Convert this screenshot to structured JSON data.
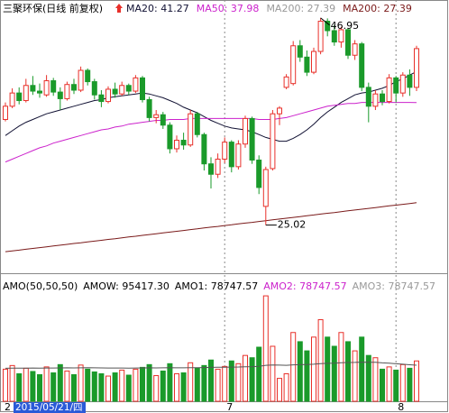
{
  "chart_data": {
    "type": "candlestick",
    "title": "三聚环保(日线 前复权)",
    "up_color": "#e8302a",
    "down_color": "#1a9a2a",
    "ylim": [
      20.4,
      47.7
    ],
    "categories": [
      "2",
      null,
      null,
      null,
      null,
      null,
      null,
      null,
      null,
      null,
      null,
      null,
      null,
      null,
      null,
      null,
      null,
      null,
      null,
      null,
      null,
      null,
      null,
      null,
      null,
      null,
      null,
      null,
      null,
      null,
      null,
      null,
      "7",
      null,
      null,
      null,
      null,
      null,
      null,
      null,
      null,
      null,
      null,
      null,
      null,
      null,
      null,
      null,
      null,
      null,
      null,
      null,
      null,
      null,
      null,
      null,
      null,
      "8",
      null,
      null,
      null
    ],
    "cursor_label": "2015/05/21/四",
    "candles": [
      {
        "open": 36.2,
        "close": 37.6,
        "high": 38.0,
        "low": 36.0
      },
      {
        "open": 37.6,
        "close": 39.0,
        "high": 39.5,
        "low": 37.4
      },
      {
        "open": 39.0,
        "close": 38.2,
        "high": 39.6,
        "low": 37.8
      },
      {
        "open": 38.2,
        "close": 39.8,
        "high": 40.5,
        "low": 38.0
      },
      {
        "open": 39.8,
        "close": 39.2,
        "high": 40.8,
        "low": 38.8
      },
      {
        "open": 39.2,
        "close": 39.0,
        "high": 40.0,
        "low": 38.5
      },
      {
        "open": 38.8,
        "close": 40.3,
        "high": 40.9,
        "low": 38.6
      },
      {
        "open": 40.3,
        "close": 39.1,
        "high": 40.6,
        "low": 38.7
      },
      {
        "open": 39.1,
        "close": 38.4,
        "high": 39.6,
        "low": 37.2
      },
      {
        "open": 38.4,
        "close": 39.9,
        "high": 40.2,
        "low": 38.2
      },
      {
        "open": 39.9,
        "close": 39.3,
        "high": 40.5,
        "low": 38.9
      },
      {
        "open": 39.3,
        "close": 41.4,
        "high": 41.8,
        "low": 39.1
      },
      {
        "open": 41.4,
        "close": 40.2,
        "high": 41.6,
        "low": 39.8
      },
      {
        "open": 40.2,
        "close": 38.8,
        "high": 40.5,
        "low": 38.3
      },
      {
        "open": 38.8,
        "close": 38.1,
        "high": 39.3,
        "low": 37.5
      },
      {
        "open": 38.1,
        "close": 39.4,
        "high": 39.7,
        "low": 37.9
      },
      {
        "open": 39.4,
        "close": 38.9,
        "high": 40.1,
        "low": 38.5
      },
      {
        "open": 38.9,
        "close": 39.8,
        "high": 40.2,
        "low": 38.7
      },
      {
        "open": 39.8,
        "close": 39.2,
        "high": 40.0,
        "low": 38.8
      },
      {
        "open": 39.2,
        "close": 40.6,
        "high": 40.9,
        "low": 39.0
      },
      {
        "open": 40.6,
        "close": 38.3,
        "high": 40.8,
        "low": 38.0
      },
      {
        "open": 38.3,
        "close": 36.4,
        "high": 38.6,
        "low": 36.0
      },
      {
        "open": 36.4,
        "close": 36.7,
        "high": 37.2,
        "low": 35.8
      },
      {
        "open": 36.7,
        "close": 35.6,
        "high": 37.0,
        "low": 35.2
      },
      {
        "open": 35.6,
        "close": 33.1,
        "high": 35.9,
        "low": 32.6
      },
      {
        "open": 33.1,
        "close": 34.0,
        "high": 34.5,
        "low": 32.7
      },
      {
        "open": 34.0,
        "close": 33.5,
        "high": 34.8,
        "low": 33.0
      },
      {
        "open": 33.5,
        "close": 36.8,
        "high": 37.2,
        "low": 33.3
      },
      {
        "open": 36.8,
        "close": 34.6,
        "high": 37.0,
        "low": 34.3
      },
      {
        "open": 34.6,
        "close": 31.5,
        "high": 34.8,
        "low": 30.8
      },
      {
        "open": 31.5,
        "close": 30.4,
        "high": 32.2,
        "low": 28.9
      },
      {
        "open": 30.4,
        "close": 32.0,
        "high": 32.6,
        "low": 30.0
      },
      {
        "open": 32.0,
        "close": 33.8,
        "high": 34.3,
        "low": 31.6
      },
      {
        "open": 33.8,
        "close": 31.2,
        "high": 34.0,
        "low": 30.6
      },
      {
        "open": 31.2,
        "close": 33.6,
        "high": 34.0,
        "low": 30.9
      },
      {
        "open": 33.6,
        "close": 36.3,
        "high": 36.6,
        "low": 33.2
      },
      {
        "open": 36.3,
        "close": 31.9,
        "high": 36.5,
        "low": 31.5
      },
      {
        "open": 31.9,
        "close": 29.0,
        "high": 32.4,
        "low": 28.3
      },
      {
        "open": 27.0,
        "close": 30.9,
        "high": 31.2,
        "low": 25.02
      },
      {
        "open": 31.0,
        "close": 36.8,
        "high": 37.2,
        "low": 30.8
      },
      {
        "open": 36.8,
        "close": 37.4,
        "high": 37.6,
        "low": 35.6
      },
      {
        "open": 39.6,
        "close": 40.7,
        "high": 41.0,
        "low": 39.4
      },
      {
        "open": 40.0,
        "close": 44.0,
        "high": 44.5,
        "low": 39.8
      },
      {
        "open": 44.0,
        "close": 42.8,
        "high": 44.6,
        "low": 42.3
      },
      {
        "open": 42.8,
        "close": 41.2,
        "high": 43.5,
        "low": 40.8
      },
      {
        "open": 41.2,
        "close": 43.4,
        "high": 43.8,
        "low": 41.0
      },
      {
        "open": 43.4,
        "close": 46.6,
        "high": 46.95,
        "low": 43.1
      },
      {
        "open": 46.6,
        "close": 45.6,
        "high": 46.9,
        "low": 45.0
      },
      {
        "open": 45.6,
        "close": 44.4,
        "high": 46.2,
        "low": 44.0
      },
      {
        "open": 44.4,
        "close": 45.7,
        "high": 46.0,
        "low": 43.8
      },
      {
        "open": 45.7,
        "close": 43.0,
        "high": 45.9,
        "low": 42.6
      },
      {
        "open": 43.0,
        "close": 44.2,
        "high": 44.6,
        "low": 42.5
      },
      {
        "open": 44.2,
        "close": 39.6,
        "high": 44.4,
        "low": 39.2
      },
      {
        "open": 39.6,
        "close": 37.6,
        "high": 40.1,
        "low": 35.9
      },
      {
        "open": 37.6,
        "close": 38.9,
        "high": 39.3,
        "low": 37.2
      },
      {
        "open": 38.9,
        "close": 38.1,
        "high": 39.3,
        "low": 37.7
      },
      {
        "open": 38.1,
        "close": 40.6,
        "high": 41.0,
        "low": 37.9
      },
      {
        "open": 40.6,
        "close": 39.0,
        "high": 40.8,
        "low": 38.0
      },
      {
        "open": 39.0,
        "close": 40.9,
        "high": 41.2,
        "low": 38.6
      },
      {
        "open": 40.9,
        "close": 39.6,
        "high": 41.5,
        "low": 38.7
      },
      {
        "open": 39.6,
        "close": 43.7,
        "high": 44.0,
        "low": 39.2
      }
    ],
    "series": [
      {
        "name": "MA20: 41.27",
        "color": "#111133",
        "values": [
          34.5,
          35.0,
          35.5,
          35.9,
          36.2,
          36.5,
          36.8,
          37.0,
          37.2,
          37.4,
          37.6,
          37.8,
          38.0,
          38.2,
          38.3,
          38.5,
          38.6,
          38.7,
          38.8,
          38.9,
          39.0,
          38.9,
          38.7,
          38.5,
          38.2,
          37.9,
          37.5,
          37.2,
          36.9,
          36.5,
          36.1,
          35.8,
          35.5,
          35.3,
          35.2,
          35.1,
          34.9,
          34.6,
          34.3,
          34.1,
          33.9,
          33.9,
          34.2,
          34.6,
          35.1,
          35.7,
          36.4,
          37.0,
          37.5,
          38.0,
          38.4,
          38.8,
          39.0,
          39.1,
          39.3,
          39.5,
          39.8,
          40.2,
          40.5,
          40.9,
          41.27
        ]
      },
      {
        "name": "MA50: 37.98",
        "color": "#cc22cc",
        "values": [
          31.7,
          32.0,
          32.3,
          32.6,
          32.9,
          33.2,
          33.4,
          33.7,
          33.9,
          34.1,
          34.3,
          34.5,
          34.7,
          34.9,
          35.1,
          35.2,
          35.4,
          35.5,
          35.7,
          35.8,
          35.9,
          36.0,
          36.1,
          36.1,
          36.2,
          36.2,
          36.2,
          36.3,
          36.3,
          36.3,
          36.3,
          36.3,
          36.3,
          36.3,
          36.3,
          36.3,
          36.3,
          36.2,
          36.2,
          36.2,
          36.3,
          36.4,
          36.6,
          36.8,
          37.0,
          37.2,
          37.4,
          37.6,
          37.7,
          37.8,
          37.9,
          37.9,
          38.0,
          38.0,
          38.0,
          38.0,
          38.0,
          38.0,
          38.0,
          38.0,
          37.98
        ]
      },
      {
        "name": "MA200: 27.39",
        "color": "#7a1a1a",
        "values": [
          22.2,
          22.29,
          22.37,
          22.46,
          22.55,
          22.63,
          22.72,
          22.81,
          22.89,
          22.98,
          23.07,
          23.15,
          23.24,
          23.32,
          23.41,
          23.5,
          23.58,
          23.67,
          23.76,
          23.84,
          23.93,
          24.02,
          24.1,
          24.19,
          24.28,
          24.36,
          24.45,
          24.54,
          24.62,
          24.71,
          24.8,
          24.88,
          24.97,
          25.05,
          25.14,
          25.23,
          25.31,
          25.4,
          25.49,
          25.57,
          25.66,
          25.75,
          25.83,
          25.92,
          26.01,
          26.09,
          26.18,
          26.27,
          26.35,
          26.44,
          26.53,
          26.61,
          26.7,
          26.79,
          26.87,
          26.96,
          27.05,
          27.13,
          27.22,
          27.3,
          27.39
        ]
      }
    ],
    "legend_extra": {
      "name": "MA200: 27.39",
      "color": "#999999"
    },
    "volume": {
      "vlim": [
        0,
        240000
      ],
      "values": [
        70000,
        78000,
        60000,
        72000,
        65000,
        58000,
        75000,
        62000,
        80000,
        66000,
        58000,
        79000,
        70000,
        64000,
        60000,
        55000,
        62000,
        68000,
        57000,
        70000,
        74000,
        80000,
        56000,
        66000,
        82000,
        60000,
        62000,
        84000,
        72000,
        78000,
        90000,
        70000,
        76000,
        88000,
        82000,
        100000,
        95000,
        118000,
        230000,
        120000,
        50000,
        60000,
        150000,
        130000,
        110000,
        140000,
        178000,
        140000,
        120000,
        150000,
        130000,
        110000,
        140000,
        100000,
        95000,
        70000,
        75000,
        68000,
        80000,
        72000,
        88000
      ],
      "ma_values": [
        72000,
        72300,
        72100,
        72400,
        72500,
        72300,
        72600,
        72500,
        72800,
        72900,
        72700,
        73000,
        73100,
        73000,
        72800,
        72600,
        72500,
        72600,
        72400,
        72500,
        72700,
        73000,
        72800,
        72900,
        73200,
        73000,
        72900,
        73300,
        73400,
        73600,
        74000,
        74100,
        74300,
        74600,
        74800,
        75300,
        75600,
        76200,
        78500,
        79200,
        78800,
        78400,
        79400,
        79900,
        80200,
        80900,
        82200,
        82900,
        83300,
        84100,
        84500,
        84700,
        85300,
        85200,
        84900,
        83900,
        83000,
        81900,
        80900,
        79700,
        78747.57
      ],
      "ma_color": "#555555",
      "labels": [
        {
          "text": "AMO(50,50,50)",
          "color": "#000000"
        },
        {
          "text": "AMOW: 95417.30",
          "color": "#000000"
        },
        {
          "text": "AMO1: 78747.57",
          "color": "#000000"
        },
        {
          "text": "AMO2: 78747.57",
          "color": "#cc22cc"
        },
        {
          "text": "AMO3: 78747.57",
          "color": "#999999"
        }
      ]
    }
  }
}
